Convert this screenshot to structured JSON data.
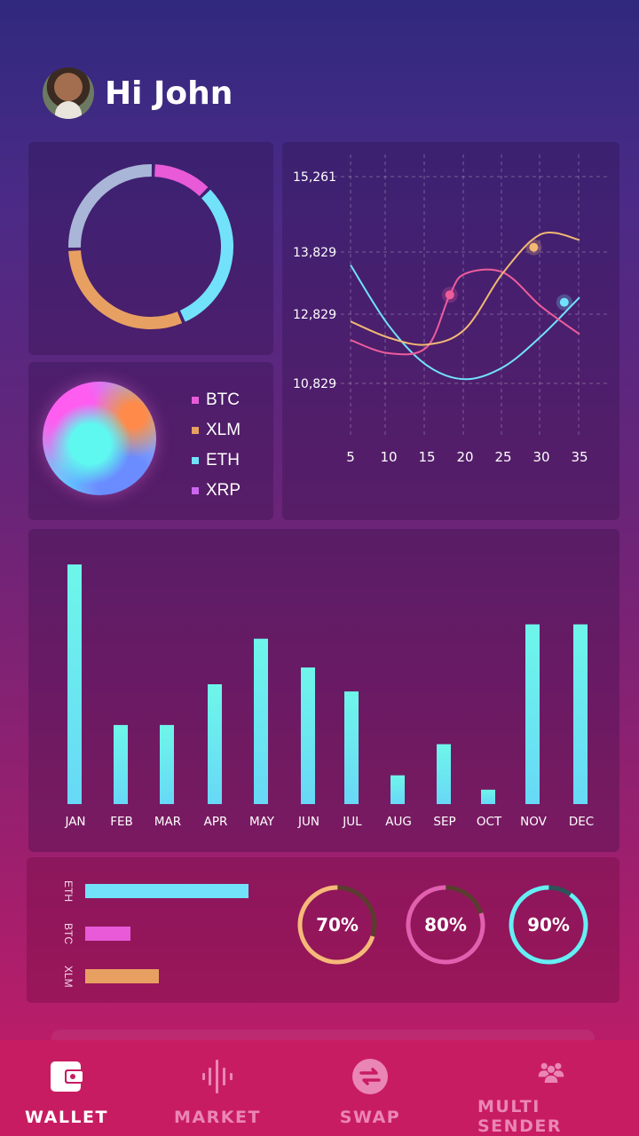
{
  "header": {
    "greeting": "Hi John"
  },
  "donut": {
    "segments": [
      {
        "name": "BTC",
        "value": 12,
        "color": "#e85ad8"
      },
      {
        "name": "ETH",
        "value": 31,
        "color": "#72e2fb"
      },
      {
        "name": "XLM",
        "value": 31,
        "color": "#e8a062"
      },
      {
        "name": "XRP",
        "value": 26,
        "color": "#aab6d8"
      }
    ]
  },
  "legend": {
    "items": [
      {
        "label": "BTC",
        "color": "#e85ad8"
      },
      {
        "label": "XLM",
        "color": "#e8a062"
      },
      {
        "label": "ETH",
        "color": "#72e2fb"
      },
      {
        "label": "XRP",
        "color": "#cc66ee"
      }
    ]
  },
  "chart_data": [
    {
      "type": "line",
      "x_ticks": [
        5,
        10,
        15,
        20,
        25,
        30,
        35
      ],
      "y_ticks": [
        "15,261",
        "13,829",
        "12,829",
        "10,829"
      ],
      "y_tick_values": [
        15261,
        13829,
        12829,
        10829
      ],
      "xlim": [
        5,
        35
      ],
      "grid": true,
      "series": [
        {
          "color": "#72e2fb",
          "points": [
            [
              5,
              13620
            ],
            [
              10,
              12500
            ],
            [
              15,
              11350
            ],
            [
              20,
              10950
            ],
            [
              25,
              11300
            ],
            [
              30,
              12200
            ],
            [
              35,
              13100
            ]
          ],
          "marker": [
            33,
            13020
          ]
        },
        {
          "color": "#ee5c9c",
          "points": [
            [
              5,
              12080
            ],
            [
              10,
              11700
            ],
            [
              15,
              11880
            ],
            [
              18,
              13140
            ],
            [
              20,
              13480
            ],
            [
              25,
              13500
            ],
            [
              30,
              12950
            ],
            [
              35,
              12250
            ]
          ],
          "marker": [
            18,
            13140
          ]
        },
        {
          "color": "#f2b874",
          "points": [
            [
              5,
              12620
            ],
            [
              10,
              12150
            ],
            [
              15,
              11950
            ],
            [
              20,
              12400
            ],
            [
              25,
              13500
            ],
            [
              30,
              14170
            ],
            [
              35,
              14060
            ]
          ],
          "marker": [
            29,
            13920
          ]
        }
      ]
    },
    {
      "type": "bar",
      "categories": [
        "JAN",
        "FEB",
        "MAR",
        "APR",
        "MAY",
        "JUN",
        "JUL",
        "AUG",
        "SEP",
        "OCT",
        "NOV",
        "DEC"
      ],
      "values": [
        100,
        33,
        33,
        50,
        69,
        57,
        47,
        12,
        25,
        6,
        75,
        75
      ],
      "ylim": [
        0,
        100
      ]
    }
  ],
  "progress": {
    "bars": [
      {
        "label": "ETH",
        "value": 0.8,
        "color": "#72e2fb"
      },
      {
        "label": "BTC",
        "value": 0.22,
        "color": "#e85ad8"
      },
      {
        "label": "XLM",
        "value": 0.36,
        "color": "#e8a062"
      }
    ],
    "rings": [
      {
        "label": "70%",
        "value": 0.7,
        "color": "#f7b87a",
        "track": "#5a3d2e"
      },
      {
        "label": "80%",
        "value": 0.8,
        "color": "#e35fb0",
        "track": "#5a3d2e"
      },
      {
        "label": "90%",
        "value": 0.9,
        "color": "#66eef4",
        "track": "#2d5358"
      }
    ]
  },
  "nav": {
    "items": [
      {
        "label": "WALLET",
        "icon": "wallet-icon",
        "active": true
      },
      {
        "label": "MARKET",
        "icon": "market-icon",
        "active": false
      },
      {
        "label": "SWAP",
        "icon": "swap-icon",
        "active": false
      },
      {
        "label": "MULTI SENDER",
        "icon": "users-icon",
        "active": false
      }
    ]
  }
}
